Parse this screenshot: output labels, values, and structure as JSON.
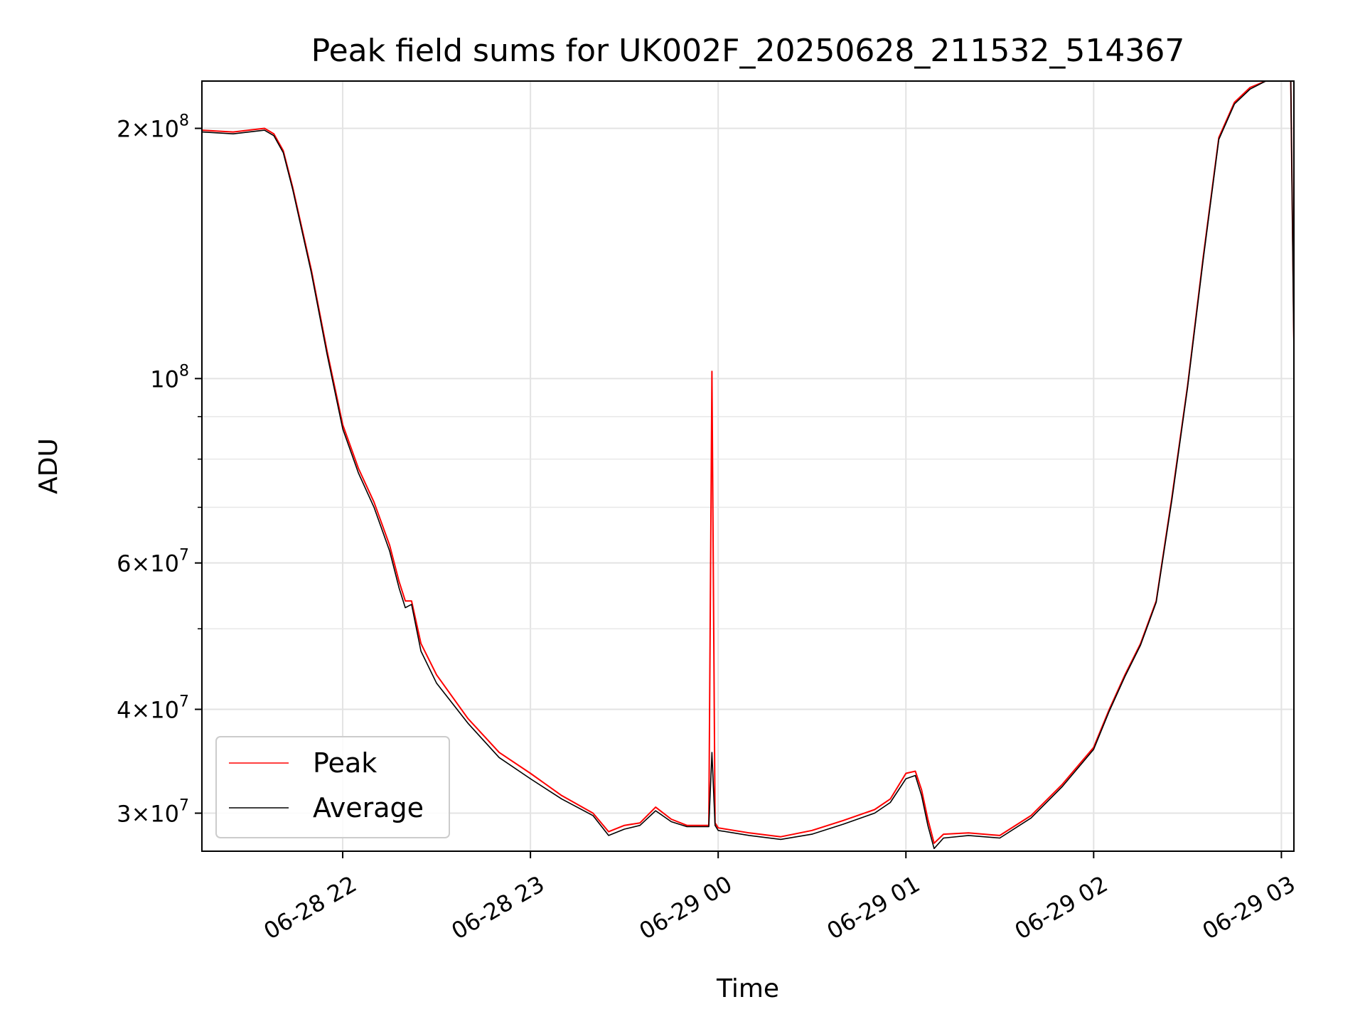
{
  "chart_data": {
    "type": "line",
    "title": "Peak field sums for UK002F_20250628_211532_514367",
    "xlabel": "Time",
    "ylabel": "ADU",
    "yscale": "log",
    "xlim": [
      "06-28 21:15",
      "06-29 03:04"
    ],
    "ylim": [
      27000000,
      228000000
    ],
    "grid": true,
    "legend_position": "lower-left",
    "x_tick_labels": [
      "06-28 22",
      "06-28 23",
      "06-29 00",
      "06-29 01",
      "06-29 02",
      "06-29 03"
    ],
    "x_ticks": [
      "06-28 22:00",
      "06-28 23:00",
      "06-29 00:00",
      "06-29 01:00",
      "06-29 02:00",
      "06-29 03:00"
    ],
    "y_major_ticks": [
      {
        "value": 30000000,
        "mantissa": "3",
        "exponent": "7"
      },
      {
        "value": 40000000,
        "mantissa": "4",
        "exponent": "7"
      },
      {
        "value": 60000000,
        "mantissa": "6",
        "exponent": "7"
      },
      {
        "value": 100000000,
        "mantissa": "",
        "exponent": "8"
      },
      {
        "value": 200000000,
        "mantissa": "2",
        "exponent": "8"
      }
    ],
    "y_minor_ticks": [
      50000000,
      70000000,
      80000000,
      90000000
    ],
    "series": [
      {
        "name": "Peak",
        "color": "#ff0000",
        "x": [
          "06-28 21:15",
          "06-28 21:25",
          "06-28 21:35",
          "06-28 21:38",
          "06-28 21:41",
          "06-28 21:44",
          "06-28 21:50",
          "06-28 21:55",
          "06-28 22:00",
          "06-28 22:05",
          "06-28 22:10",
          "06-28 22:15",
          "06-28 22:18",
          "06-28 22:20",
          "06-28 22:22",
          "06-28 22:25",
          "06-28 22:30",
          "06-28 22:40",
          "06-28 22:50",
          "06-28 23:00",
          "06-28 23:10",
          "06-28 23:20",
          "06-28 23:25",
          "06-28 23:30",
          "06-28 23:35",
          "06-28 23:40",
          "06-28 23:45",
          "06-28 23:50",
          "06-28 23:57",
          "06-28 23:58",
          "06-28 23:59",
          "06-29 00:00",
          "06-29 00:10",
          "06-29 00:20",
          "06-29 00:30",
          "06-29 00:40",
          "06-29 00:50",
          "06-29 00:55",
          "06-29 01:00",
          "06-29 01:03",
          "06-29 01:05",
          "06-29 01:07",
          "06-29 01:09",
          "06-29 01:12",
          "06-29 01:20",
          "06-29 01:30",
          "06-29 01:40",
          "06-29 01:50",
          "06-29 02:00",
          "06-29 02:05",
          "06-29 02:10",
          "06-29 02:15",
          "06-29 02:20",
          "06-29 02:25",
          "06-29 02:30",
          "06-29 02:35",
          "06-29 02:40",
          "06-29 02:45",
          "06-29 02:50",
          "06-29 02:55",
          "06-29 03:00",
          "06-29 03:02",
          "06-29 03:03",
          "06-29 03:04"
        ],
        "y": [
          199000000,
          198000000,
          200000000,
          197000000,
          188000000,
          170000000,
          135000000,
          108000000,
          88000000,
          78000000,
          71000000,
          63000000,
          57000000,
          54000000,
          54000000,
          48000000,
          44000000,
          39000000,
          35500000,
          33500000,
          31500000,
          30000000,
          28500000,
          29000000,
          29200000,
          30500000,
          29500000,
          29000000,
          29000000,
          102000000,
          29200000,
          28800000,
          28400000,
          28100000,
          28600000,
          29400000,
          30300000,
          31200000,
          33500000,
          33700000,
          32000000,
          29500000,
          27600000,
          28300000,
          28400000,
          28200000,
          29800000,
          32500000,
          36000000,
          40000000,
          44000000,
          48000000,
          54000000,
          72000000,
          98000000,
          140000000,
          195000000,
          215000000,
          224000000,
          228000000,
          228000000,
          228000000,
          228000000,
          110000000
        ]
      },
      {
        "name": "Average",
        "color": "#000000",
        "x": [
          "06-28 21:15",
          "06-28 21:25",
          "06-28 21:35",
          "06-28 21:38",
          "06-28 21:41",
          "06-28 21:44",
          "06-28 21:50",
          "06-28 21:55",
          "06-28 22:00",
          "06-28 22:05",
          "06-28 22:10",
          "06-28 22:15",
          "06-28 22:18",
          "06-28 22:20",
          "06-28 22:22",
          "06-28 22:25",
          "06-28 22:30",
          "06-28 22:40",
          "06-28 22:50",
          "06-28 23:00",
          "06-28 23:10",
          "06-28 23:20",
          "06-28 23:25",
          "06-28 23:30",
          "06-28 23:35",
          "06-28 23:40",
          "06-28 23:45",
          "06-28 23:50",
          "06-28 23:57",
          "06-28 23:58",
          "06-28 23:59",
          "06-29 00:00",
          "06-29 00:10",
          "06-29 00:20",
          "06-29 00:30",
          "06-29 00:40",
          "06-29 00:50",
          "06-29 00:55",
          "06-29 01:00",
          "06-29 01:03",
          "06-29 01:05",
          "06-29 01:07",
          "06-29 01:09",
          "06-29 01:12",
          "06-29 01:20",
          "06-29 01:30",
          "06-29 01:40",
          "06-29 01:50",
          "06-29 02:00",
          "06-29 02:05",
          "06-29 02:10",
          "06-29 02:15",
          "06-29 02:20",
          "06-29 02:25",
          "06-29 02:30",
          "06-29 02:35",
          "06-29 02:40",
          "06-29 02:45",
          "06-29 02:50",
          "06-29 02:55",
          "06-29 03:00",
          "06-29 03:02",
          "06-29 03:03",
          "06-29 03:04"
        ],
        "y": [
          198000000,
          197000000,
          199000000,
          196000000,
          187000000,
          169000000,
          134000000,
          107000000,
          87000000,
          77000000,
          70000000,
          62000000,
          56000000,
          53000000,
          53500000,
          47000000,
          43000000,
          38500000,
          35000000,
          33000000,
          31200000,
          29800000,
          28200000,
          28700000,
          29000000,
          30200000,
          29300000,
          28900000,
          28900000,
          35500000,
          29000000,
          28600000,
          28200000,
          27900000,
          28300000,
          29100000,
          30000000,
          30900000,
          33000000,
          33300000,
          31500000,
          29000000,
          27200000,
          28000000,
          28200000,
          28000000,
          29600000,
          32300000,
          35800000,
          39800000,
          43800000,
          47800000,
          53800000,
          71500000,
          97500000,
          139000000,
          194000000,
          214000000,
          223000000,
          228000000,
          228000000,
          228000000,
          228000000,
          108000000
        ]
      }
    ]
  }
}
